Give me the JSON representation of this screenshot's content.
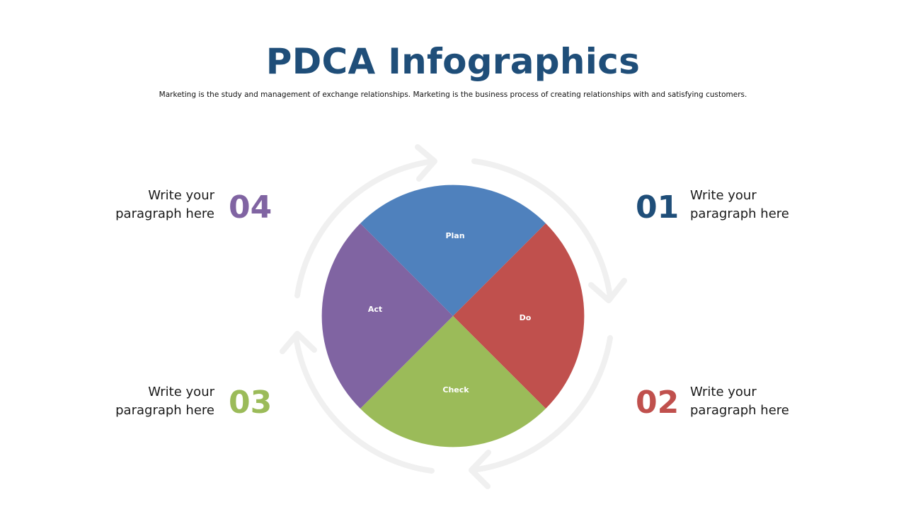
{
  "title": "PDCA Infographics",
  "subtitle": "Marketing is the study and management of exchange relationships. Marketing is the business process of creating relationships with and satisfying customers.",
  "quadrants": [
    {
      "label": "Plan",
      "color": "#4f81bd"
    },
    {
      "label": "Do",
      "color": "#c0504d"
    },
    {
      "label": "Check",
      "color": "#9bbb59"
    },
    {
      "label": "Act",
      "color": "#8064a2"
    }
  ],
  "items": [
    {
      "number": "01",
      "line1": "Write your",
      "line2": "paragraph here",
      "color": "#1f4e79"
    },
    {
      "number": "02",
      "line1": "Write your",
      "line2": "paragraph here",
      "color": "#c0504d"
    },
    {
      "number": "03",
      "line1": "Write your",
      "line2": "paragraph here",
      "color": "#9bbb59"
    },
    {
      "number": "04",
      "line1": "Write your",
      "line2": "paragraph here",
      "color": "#8064a2"
    }
  ],
  "arrow_color": "#f0f0f0"
}
